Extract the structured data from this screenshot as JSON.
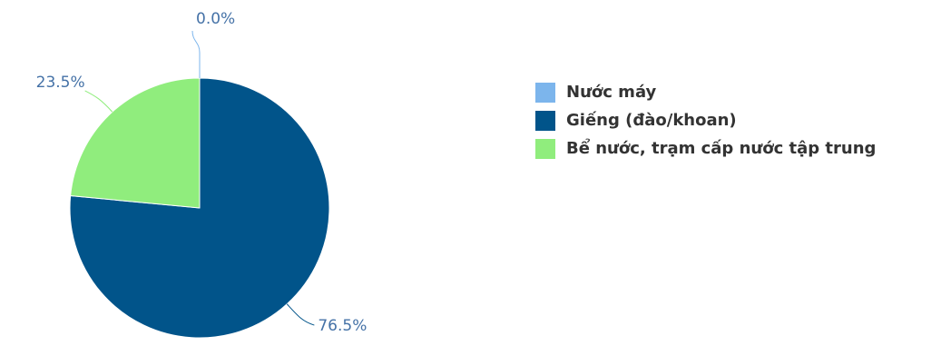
{
  "chart_data": {
    "type": "pie",
    "slices": [
      {
        "label": "Nước máy",
        "value": 0.0,
        "display": "0.0%",
        "color": "#7cb5ec"
      },
      {
        "label": "Giếng (đào/khoan)",
        "value": 76.5,
        "display": "76.5%",
        "color": "#01548a"
      },
      {
        "label": "Bể nước, trạm cấp nước tập trung",
        "value": 23.5,
        "display": "23.5%",
        "color": "#90ed7d"
      }
    ],
    "start_angle_deg": 0,
    "direction": "clockwise",
    "legend_position": "right",
    "label_color": "#4572a7"
  }
}
